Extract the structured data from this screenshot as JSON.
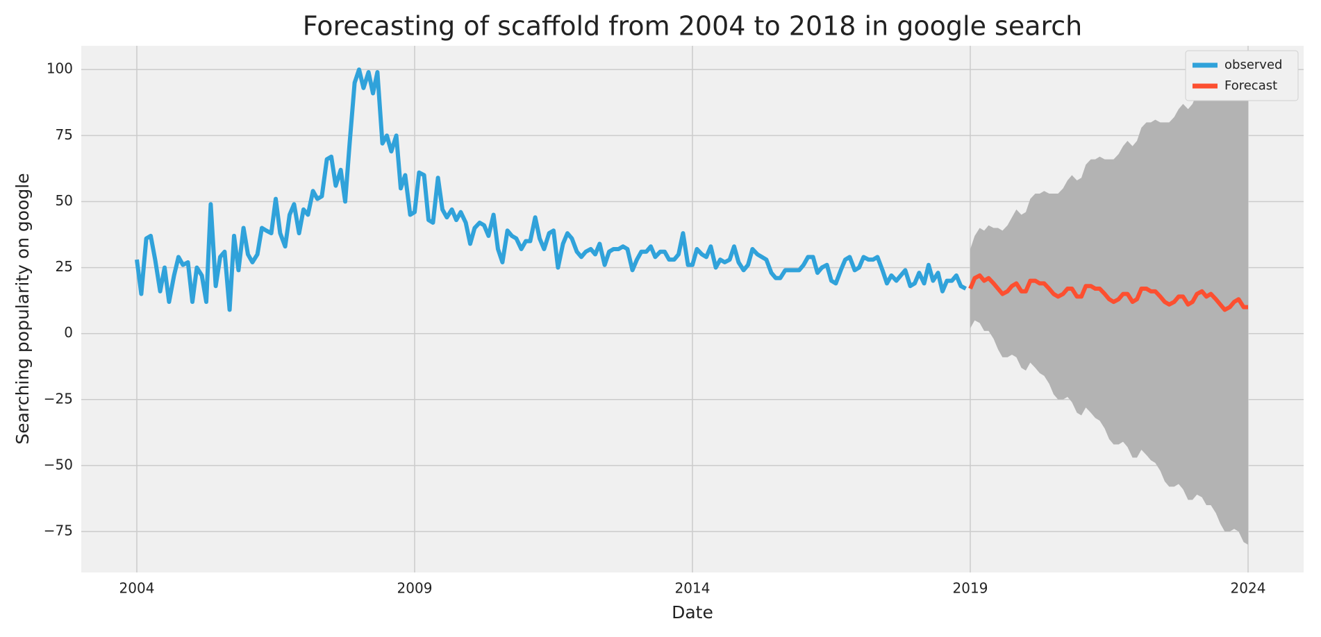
{
  "chart_data": {
    "type": "line",
    "title": "Forecasting of scaffold from 2004 to 2018 in google search",
    "xlabel": "Date",
    "ylabel": "Searching popularity on google",
    "xlim": [
      2003.0,
      2025.0
    ],
    "xticks": [
      2004,
      2009,
      2014,
      2019,
      2024
    ],
    "ylim": [
      -90.5,
      109
    ],
    "yticks": [
      {
        "value": -75,
        "label": "−75"
      },
      {
        "value": -50,
        "label": "−50"
      },
      {
        "value": -25,
        "label": "−25"
      },
      0,
      25,
      50,
      75,
      100
    ],
    "grid": true,
    "legend": "upper right",
    "series": [
      {
        "name": "observed",
        "color": "#30a2da",
        "x": [
          2004.0,
          2004.08,
          2004.17,
          2004.25,
          2004.33,
          2004.42,
          2004.5,
          2004.58,
          2004.67,
          2004.75,
          2004.83,
          2004.92,
          2005.0,
          2005.08,
          2005.17,
          2005.25,
          2005.33,
          2005.42,
          2005.5,
          2005.58,
          2005.67,
          2005.75,
          2005.83,
          2005.92,
          2006.0,
          2006.08,
          2006.17,
          2006.25,
          2006.33,
          2006.42,
          2006.5,
          2006.58,
          2006.67,
          2006.75,
          2006.83,
          2006.92,
          2007.0,
          2007.08,
          2007.17,
          2007.25,
          2007.33,
          2007.42,
          2007.5,
          2007.58,
          2007.67,
          2007.75,
          2007.83,
          2007.92,
          2008.0,
          2008.08,
          2008.17,
          2008.25,
          2008.33,
          2008.42,
          2008.5,
          2008.58,
          2008.67,
          2008.75,
          2008.83,
          2008.92,
          2009.0,
          2009.08,
          2009.17,
          2009.25,
          2009.33,
          2009.42,
          2009.5,
          2009.58,
          2009.67,
          2009.75,
          2009.83,
          2009.92,
          2010.0,
          2010.08,
          2010.17,
          2010.25,
          2010.33,
          2010.42,
          2010.5,
          2010.58,
          2010.67,
          2010.75,
          2010.83,
          2010.92,
          2011.0,
          2011.08,
          2011.17,
          2011.25,
          2011.33,
          2011.42,
          2011.5,
          2011.58,
          2011.67,
          2011.75,
          2011.83,
          2011.92,
          2012.0,
          2012.08,
          2012.17,
          2012.25,
          2012.33,
          2012.42,
          2012.5,
          2012.58,
          2012.67,
          2012.75,
          2012.83,
          2012.92,
          2013.0,
          2013.08,
          2013.17,
          2013.25,
          2013.33,
          2013.42,
          2013.5,
          2013.58,
          2013.67,
          2013.75,
          2013.83,
          2013.92,
          2014.0,
          2014.08,
          2014.17,
          2014.25,
          2014.33,
          2014.42,
          2014.5,
          2014.58,
          2014.67,
          2014.75,
          2014.83,
          2014.92,
          2015.0,
          2015.08,
          2015.17,
          2015.25,
          2015.33,
          2015.42,
          2015.5,
          2015.58,
          2015.67,
          2015.75,
          2015.83,
          2015.92,
          2016.0,
          2016.08,
          2016.17,
          2016.25,
          2016.33,
          2016.42,
          2016.5,
          2016.58,
          2016.67,
          2016.75,
          2016.83,
          2016.92,
          2017.0,
          2017.08,
          2017.17,
          2017.25,
          2017.33,
          2017.42,
          2017.5,
          2017.58,
          2017.67,
          2017.75,
          2017.83,
          2017.92,
          2018.0,
          2018.08,
          2018.17,
          2018.25,
          2018.33,
          2018.42,
          2018.5,
          2018.58,
          2018.67,
          2018.75,
          2018.83,
          2018.92
        ],
        "values": [
          28,
          15,
          36,
          37,
          28,
          16,
          25,
          12,
          22,
          29,
          26,
          27,
          12,
          25,
          22,
          12,
          49,
          18,
          29,
          31,
          9,
          37,
          24,
          40,
          30,
          27,
          30,
          40,
          39,
          38,
          51,
          38,
          33,
          45,
          49,
          38,
          47,
          45,
          54,
          51,
          52,
          66,
          67,
          56,
          62,
          50,
          72,
          95,
          100,
          93,
          99,
          91,
          99,
          72,
          75,
          69,
          75,
          55,
          60,
          45,
          46,
          61,
          60,
          43,
          42,
          59,
          47,
          44,
          47,
          43,
          46,
          42,
          34,
          40,
          42,
          41,
          37,
          45,
          32,
          27,
          39,
          37,
          36,
          32,
          35,
          35,
          44,
          36,
          32,
          38,
          39,
          25,
          34,
          38,
          36,
          31,
          29,
          31,
          32,
          30,
          34,
          26,
          31,
          32,
          32,
          33,
          32,
          24,
          28,
          31,
          31,
          33,
          29,
          31,
          31,
          28,
          28,
          30,
          38,
          26,
          26,
          32,
          30,
          29,
          33,
          25,
          28,
          27,
          28,
          33,
          27,
          24,
          26,
          32,
          30,
          29,
          28,
          23,
          21,
          21,
          24,
          24,
          24,
          24,
          26,
          29,
          29,
          23,
          25,
          26,
          20,
          19,
          24,
          28,
          29,
          24,
          25,
          29,
          28,
          28,
          29,
          24,
          19,
          22,
          20,
          22,
          24,
          18,
          19,
          23,
          19,
          26,
          20,
          23,
          16,
          20,
          20,
          22,
          18,
          17
        ]
      },
      {
        "name": "Forecast",
        "color": "#fc4f30",
        "band_color": "#b3b3b3",
        "x": [
          2019.0,
          2019.08,
          2019.17,
          2019.25,
          2019.33,
          2019.42,
          2019.5,
          2019.58,
          2019.67,
          2019.75,
          2019.83,
          2019.92,
          2020.0,
          2020.08,
          2020.17,
          2020.25,
          2020.33,
          2020.42,
          2020.5,
          2020.58,
          2020.67,
          2020.75,
          2020.83,
          2020.92,
          2021.0,
          2021.08,
          2021.17,
          2021.25,
          2021.33,
          2021.42,
          2021.5,
          2021.58,
          2021.67,
          2021.75,
          2021.83,
          2021.92,
          2022.0,
          2022.08,
          2022.17,
          2022.25,
          2022.33,
          2022.42,
          2022.5,
          2022.58,
          2022.67,
          2022.75,
          2022.83,
          2022.92,
          2023.0,
          2023.08,
          2023.17,
          2023.25,
          2023.33,
          2023.42,
          2023.5,
          2023.58,
          2023.67,
          2023.75,
          2023.83,
          2023.92,
          2024.0
        ],
        "values": [
          17,
          21,
          22,
          20,
          21,
          19,
          17,
          15,
          16,
          18,
          19,
          16,
          16,
          20,
          20,
          19,
          19,
          17,
          15,
          14,
          15,
          17,
          17,
          14,
          14,
          18,
          18,
          17,
          17,
          15,
          13,
          12,
          13,
          15,
          15,
          12,
          13,
          17,
          17,
          16,
          16,
          14,
          12,
          11,
          12,
          14,
          14,
          11,
          12,
          15,
          16,
          14,
          15,
          13,
          11,
          9,
          10,
          12,
          13,
          10,
          10
        ],
        "lower": [
          2,
          5,
          4,
          1,
          1,
          -2,
          -6,
          -9,
          -9,
          -8,
          -9,
          -13,
          -14,
          -11,
          -13,
          -15,
          -16,
          -19,
          -23,
          -25,
          -25,
          -24,
          -26,
          -30,
          -31,
          -28,
          -30,
          -32,
          -33,
          -36,
          -40,
          -42,
          -42,
          -41,
          -43,
          -47,
          -47,
          -44,
          -46,
          -48,
          -49,
          -52,
          -56,
          -58,
          -58,
          -57,
          -59,
          -63,
          -63,
          -61,
          -62,
          -65,
          -65,
          -68,
          -72,
          -75,
          -75,
          -74,
          -75,
          -79,
          -80
        ],
        "upper": [
          32,
          37,
          40,
          39,
          41,
          40,
          40,
          39,
          41,
          44,
          47,
          45,
          46,
          51,
          53,
          53,
          54,
          53,
          53,
          53,
          55,
          58,
          60,
          58,
          59,
          64,
          66,
          66,
          67,
          66,
          66,
          66,
          68,
          71,
          73,
          71,
          73,
          78,
          80,
          80,
          81,
          80,
          80,
          80,
          82,
          85,
          87,
          85,
          87,
          91,
          94,
          93,
          95,
          94,
          94,
          93,
          95,
          98,
          101,
          99,
          100
        ]
      }
    ]
  }
}
